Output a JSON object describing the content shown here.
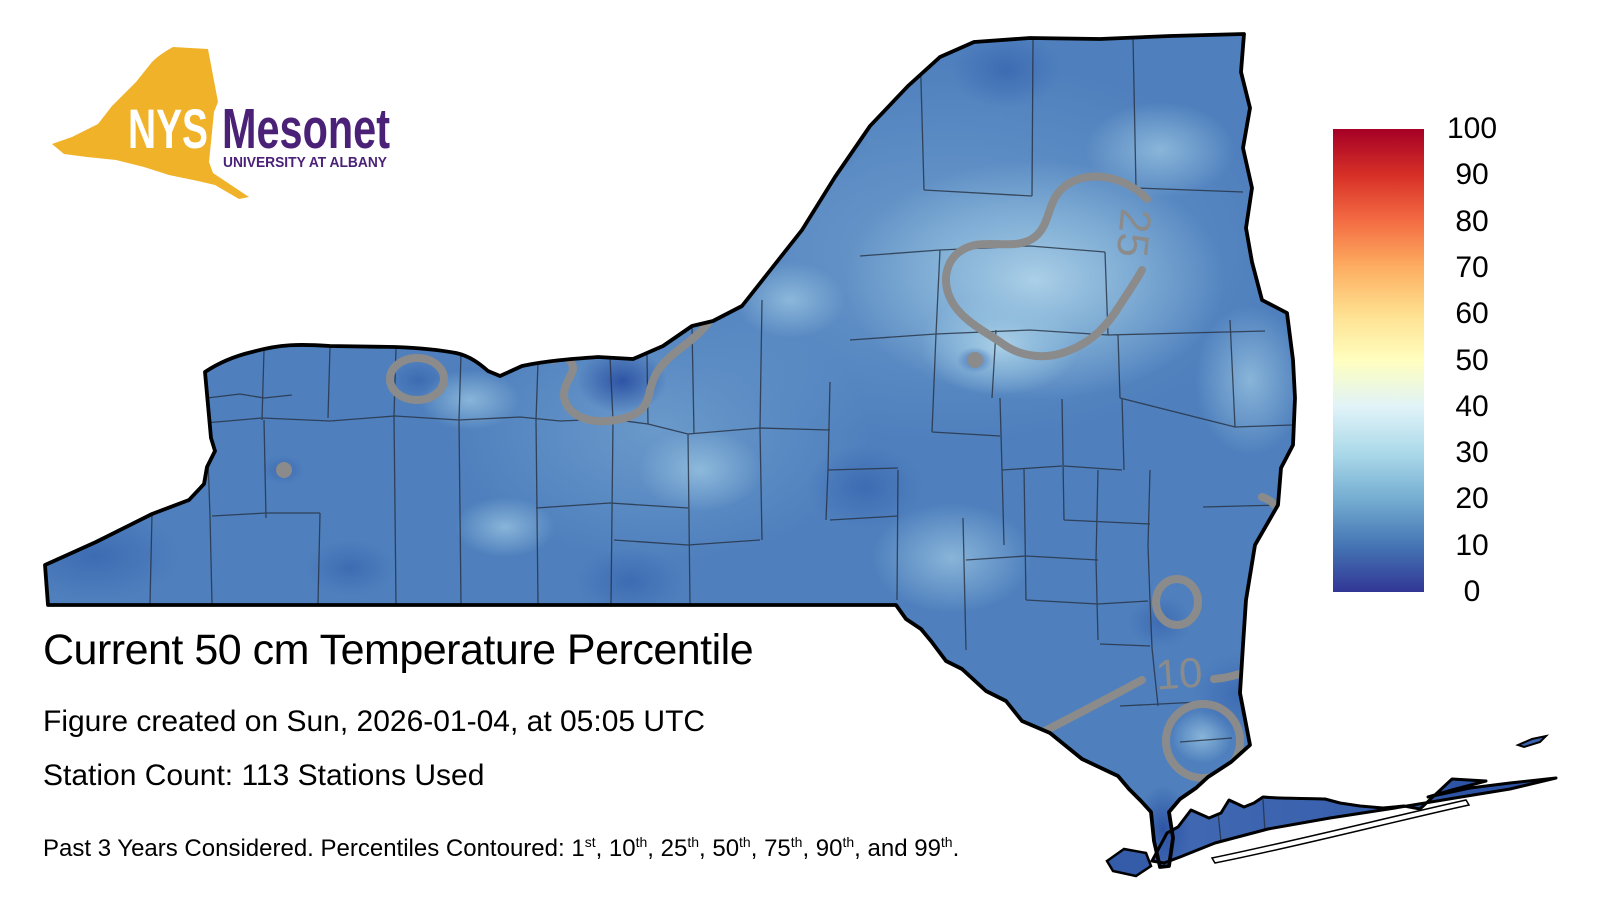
{
  "logo": {
    "acronym": "NYS",
    "wordmark": "Mesonet",
    "affiliation": "UNIVERSITY AT ALBANY",
    "gold": "#F0B229",
    "purple": "#4B2178",
    "acronym_color": "#FFFFFF"
  },
  "titles": {
    "title": "Current 50 cm Temperature Percentile",
    "created_line": "Figure created on Sun, 2026-01-04, at 05:05 UTC",
    "station_line": "Station Count: 113 Stations Used"
  },
  "footer": {
    "prefix": "Past 3 Years Considered. Percentiles Contoured: ",
    "ordinals": [
      {
        "pre": "",
        "num": "1",
        "suf": "st"
      },
      {
        "pre": ", ",
        "num": "10",
        "suf": "th"
      },
      {
        "pre": ", ",
        "num": "25",
        "suf": "th"
      },
      {
        "pre": ", ",
        "num": "50",
        "suf": "th"
      },
      {
        "pre": ", ",
        "num": "75",
        "suf": "th"
      },
      {
        "pre": ", ",
        "num": "90",
        "suf": "th"
      },
      {
        "pre": ", and ",
        "num": "99",
        "suf": "th"
      }
    ],
    "suffix": "."
  },
  "colorbar": {
    "min": 0,
    "max": 100,
    "ticks": [
      "100",
      "90",
      "80",
      "70",
      "60",
      "50",
      "40",
      "30",
      "20",
      "10",
      "0"
    ],
    "gradient_top_to_bottom": [
      "#a50026",
      "#d73027",
      "#f46d43",
      "#fdae61",
      "#fee090",
      "#ffffbf",
      "#e0f3f8",
      "#abd9e9",
      "#74add1",
      "#4575b4",
      "#313695"
    ]
  },
  "map": {
    "region": "New York State",
    "contour_labels": {
      "c25": "25",
      "c10": "10"
    },
    "visible_contours": [
      10,
      25
    ],
    "contour_color": "#8B8B8B",
    "base_fill": "#4F80BD",
    "county_line_color": "#253040",
    "state_border_color": "#000000"
  }
}
